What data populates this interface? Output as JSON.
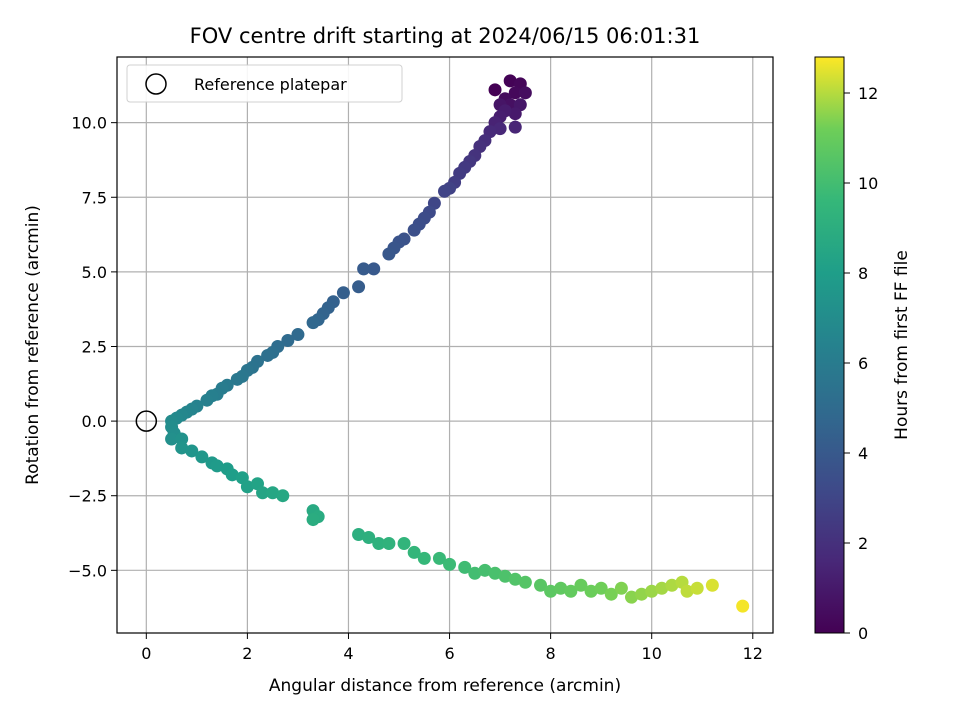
{
  "chart_data": {
    "type": "scatter",
    "title": "FOV centre drift starting at 2024/06/15 06:01:31",
    "xlabel": "Angular distance from reference (arcmin)",
    "ylabel": "Rotation from reference (arcmin)",
    "xlim": [
      -0.58,
      12.4
    ],
    "ylim": [
      -7.1,
      12.2
    ],
    "xticks": [
      0,
      2,
      4,
      6,
      8,
      10,
      12
    ],
    "yticks": [
      -5.0,
      -2.5,
      0.0,
      2.5,
      5.0,
      7.5,
      10.0
    ],
    "xtick_labels": [
      "0",
      "2",
      "4",
      "6",
      "8",
      "10",
      "12"
    ],
    "ytick_labels": [
      "−5.0",
      "−2.5",
      "0.0",
      "2.5",
      "5.0",
      "7.5",
      "10.0"
    ],
    "grid": true,
    "legend": {
      "position": "top-left",
      "entries": [
        "Reference platepar"
      ]
    },
    "reference_point": {
      "x": 0,
      "y": 0
    },
    "colorbar": {
      "label": "Hours from first FF file",
      "colormap": "viridis",
      "range": [
        0,
        12.8
      ],
      "ticks": [
        0,
        2,
        4,
        6,
        8,
        10,
        12
      ],
      "tick_labels": [
        "0",
        "2",
        "4",
        "6",
        "8",
        "10",
        "12"
      ]
    },
    "points": [
      {
        "x": 6.9,
        "y": 11.1,
        "h": 0.0
      },
      {
        "x": 7.2,
        "y": 11.4,
        "h": 0.1
      },
      {
        "x": 7.4,
        "y": 11.3,
        "h": 0.2
      },
      {
        "x": 7.3,
        "y": 11.0,
        "h": 0.3
      },
      {
        "x": 7.1,
        "y": 10.8,
        "h": 0.4
      },
      {
        "x": 7.5,
        "y": 11.0,
        "h": 0.5
      },
      {
        "x": 7.2,
        "y": 10.6,
        "h": 0.6
      },
      {
        "x": 7.0,
        "y": 10.6,
        "h": 0.8
      },
      {
        "x": 7.4,
        "y": 10.6,
        "h": 0.9
      },
      {
        "x": 7.3,
        "y": 10.3,
        "h": 1.0
      },
      {
        "x": 7.1,
        "y": 10.4,
        "h": 1.1
      },
      {
        "x": 7.0,
        "y": 10.2,
        "h": 1.2
      },
      {
        "x": 6.9,
        "y": 10.0,
        "h": 1.4
      },
      {
        "x": 7.3,
        "y": 9.85,
        "h": 1.5
      },
      {
        "x": 7.0,
        "y": 9.8,
        "h": 1.6
      },
      {
        "x": 6.8,
        "y": 9.7,
        "h": 1.7
      },
      {
        "x": 6.7,
        "y": 9.4,
        "h": 1.9
      },
      {
        "x": 6.6,
        "y": 9.2,
        "h": 2.0
      },
      {
        "x": 6.5,
        "y": 8.9,
        "h": 2.1
      },
      {
        "x": 6.4,
        "y": 8.7,
        "h": 2.3
      },
      {
        "x": 6.3,
        "y": 8.5,
        "h": 2.4
      },
      {
        "x": 6.2,
        "y": 8.3,
        "h": 2.5
      },
      {
        "x": 6.1,
        "y": 8.0,
        "h": 2.6
      },
      {
        "x": 6.0,
        "y": 7.8,
        "h": 2.8
      },
      {
        "x": 5.9,
        "y": 7.7,
        "h": 2.9
      },
      {
        "x": 5.7,
        "y": 7.3,
        "h": 3.0
      },
      {
        "x": 5.6,
        "y": 7.0,
        "h": 3.2
      },
      {
        "x": 5.5,
        "y": 6.8,
        "h": 3.3
      },
      {
        "x": 5.4,
        "y": 6.6,
        "h": 3.4
      },
      {
        "x": 5.3,
        "y": 6.4,
        "h": 3.5
      },
      {
        "x": 5.1,
        "y": 6.1,
        "h": 3.6
      },
      {
        "x": 5.0,
        "y": 6.0,
        "h": 3.7
      },
      {
        "x": 4.9,
        "y": 5.8,
        "h": 3.8
      },
      {
        "x": 4.8,
        "y": 5.6,
        "h": 3.9
      },
      {
        "x": 4.5,
        "y": 5.1,
        "h": 4.0
      },
      {
        "x": 4.3,
        "y": 5.1,
        "h": 4.1
      },
      {
        "x": 4.2,
        "y": 4.5,
        "h": 4.2
      },
      {
        "x": 3.9,
        "y": 4.3,
        "h": 4.3
      },
      {
        "x": 3.7,
        "y": 4.0,
        "h": 4.4
      },
      {
        "x": 3.6,
        "y": 3.8,
        "h": 4.5
      },
      {
        "x": 3.5,
        "y": 3.6,
        "h": 4.6
      },
      {
        "x": 3.4,
        "y": 3.4,
        "h": 4.7
      },
      {
        "x": 3.3,
        "y": 3.3,
        "h": 4.8
      },
      {
        "x": 3.0,
        "y": 2.9,
        "h": 4.9
      },
      {
        "x": 2.8,
        "y": 2.7,
        "h": 5.0
      },
      {
        "x": 2.6,
        "y": 2.5,
        "h": 5.1
      },
      {
        "x": 2.5,
        "y": 2.3,
        "h": 5.2
      },
      {
        "x": 2.4,
        "y": 2.2,
        "h": 5.3
      },
      {
        "x": 2.2,
        "y": 2.0,
        "h": 5.4
      },
      {
        "x": 2.1,
        "y": 1.8,
        "h": 5.5
      },
      {
        "x": 2.0,
        "y": 1.7,
        "h": 5.6
      },
      {
        "x": 1.9,
        "y": 1.5,
        "h": 5.7
      },
      {
        "x": 1.8,
        "y": 1.4,
        "h": 5.8
      },
      {
        "x": 1.6,
        "y": 1.2,
        "h": 5.9
      },
      {
        "x": 1.5,
        "y": 1.1,
        "h": 6.0
      },
      {
        "x": 1.4,
        "y": 0.9,
        "h": 6.1
      },
      {
        "x": 1.3,
        "y": 0.85,
        "h": 6.2
      },
      {
        "x": 1.2,
        "y": 0.7,
        "h": 6.3
      },
      {
        "x": 1.0,
        "y": 0.5,
        "h": 6.4
      },
      {
        "x": 0.9,
        "y": 0.4,
        "h": 6.5
      },
      {
        "x": 0.8,
        "y": 0.3,
        "h": 6.6
      },
      {
        "x": 0.7,
        "y": 0.2,
        "h": 6.7
      },
      {
        "x": 0.6,
        "y": 0.1,
        "h": 6.8
      },
      {
        "x": 0.5,
        "y": 0.0,
        "h": 6.9
      },
      {
        "x": 0.5,
        "y": -0.2,
        "h": 7.0
      },
      {
        "x": 0.55,
        "y": -0.4,
        "h": 7.1
      },
      {
        "x": 0.5,
        "y": -0.6,
        "h": 7.2
      },
      {
        "x": 0.7,
        "y": -0.6,
        "h": 7.3
      },
      {
        "x": 0.7,
        "y": -0.9,
        "h": 7.4
      },
      {
        "x": 0.9,
        "y": -1.0,
        "h": 7.5
      },
      {
        "x": 1.1,
        "y": -1.2,
        "h": 7.6
      },
      {
        "x": 1.3,
        "y": -1.4,
        "h": 7.7
      },
      {
        "x": 1.4,
        "y": -1.5,
        "h": 7.8
      },
      {
        "x": 1.6,
        "y": -1.6,
        "h": 7.9
      },
      {
        "x": 1.7,
        "y": -1.8,
        "h": 8.0
      },
      {
        "x": 1.9,
        "y": -1.9,
        "h": 8.1
      },
      {
        "x": 2.0,
        "y": -2.2,
        "h": 8.2
      },
      {
        "x": 2.2,
        "y": -2.1,
        "h": 8.3
      },
      {
        "x": 2.3,
        "y": -2.4,
        "h": 8.4
      },
      {
        "x": 2.5,
        "y": -2.4,
        "h": 8.5
      },
      {
        "x": 2.7,
        "y": -2.5,
        "h": 8.6
      },
      {
        "x": 3.3,
        "y": -3.0,
        "h": 8.7
      },
      {
        "x": 3.4,
        "y": -3.2,
        "h": 8.8
      },
      {
        "x": 3.3,
        "y": -3.3,
        "h": 8.9
      },
      {
        "x": 4.2,
        "y": -3.8,
        "h": 9.0
      },
      {
        "x": 4.4,
        "y": -3.9,
        "h": 9.1
      },
      {
        "x": 4.6,
        "y": -4.1,
        "h": 9.2
      },
      {
        "x": 4.8,
        "y": -4.1,
        "h": 9.3
      },
      {
        "x": 5.1,
        "y": -4.1,
        "h": 9.4
      },
      {
        "x": 5.3,
        "y": -4.4,
        "h": 9.5
      },
      {
        "x": 5.5,
        "y": -4.6,
        "h": 9.6
      },
      {
        "x": 5.8,
        "y": -4.6,
        "h": 9.7
      },
      {
        "x": 6.0,
        "y": -4.8,
        "h": 9.8
      },
      {
        "x": 6.3,
        "y": -4.9,
        "h": 9.9
      },
      {
        "x": 6.5,
        "y": -5.1,
        "h": 10.0
      },
      {
        "x": 6.7,
        "y": -5.0,
        "h": 10.1
      },
      {
        "x": 6.9,
        "y": -5.1,
        "h": 10.2
      },
      {
        "x": 7.1,
        "y": -5.2,
        "h": 10.3
      },
      {
        "x": 7.3,
        "y": -5.3,
        "h": 10.4
      },
      {
        "x": 7.5,
        "y": -5.4,
        "h": 10.5
      },
      {
        "x": 7.8,
        "y": -5.5,
        "h": 10.6
      },
      {
        "x": 8.0,
        "y": -5.7,
        "h": 10.7
      },
      {
        "x": 8.2,
        "y": -5.6,
        "h": 10.8
      },
      {
        "x": 8.4,
        "y": -5.7,
        "h": 10.9
      },
      {
        "x": 8.6,
        "y": -5.5,
        "h": 11.0
      },
      {
        "x": 8.8,
        "y": -5.7,
        "h": 11.1
      },
      {
        "x": 9.0,
        "y": -5.6,
        "h": 11.2
      },
      {
        "x": 9.2,
        "y": -5.8,
        "h": 11.3
      },
      {
        "x": 9.4,
        "y": -5.6,
        "h": 11.4
      },
      {
        "x": 9.6,
        "y": -5.9,
        "h": 11.5
      },
      {
        "x": 9.8,
        "y": -5.8,
        "h": 11.6
      },
      {
        "x": 10.0,
        "y": -5.7,
        "h": 11.7
      },
      {
        "x": 10.2,
        "y": -5.6,
        "h": 11.8
      },
      {
        "x": 10.4,
        "y": -5.5,
        "h": 11.9
      },
      {
        "x": 10.6,
        "y": -5.4,
        "h": 12.0
      },
      {
        "x": 10.7,
        "y": -5.7,
        "h": 12.1
      },
      {
        "x": 10.9,
        "y": -5.6,
        "h": 12.2
      },
      {
        "x": 11.2,
        "y": -5.5,
        "h": 12.4
      },
      {
        "x": 11.8,
        "y": -6.2,
        "h": 12.7
      }
    ]
  }
}
